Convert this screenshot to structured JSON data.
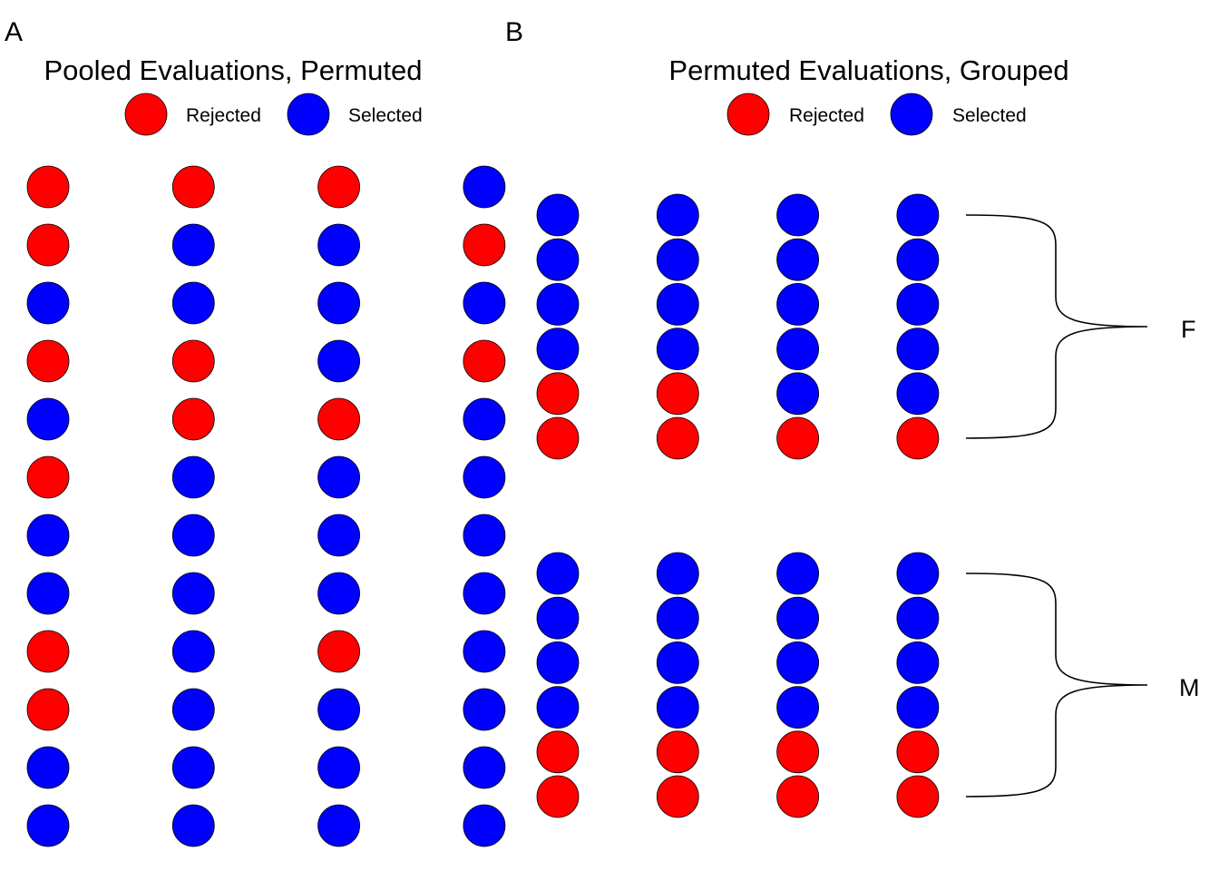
{
  "colors": {
    "rejected": "#ff0000",
    "selected": "#0000ff"
  },
  "panels": {
    "a": {
      "letter": "A",
      "title": "Pooled Evaluations, Permuted",
      "legend": {
        "rejected": "Rejected",
        "selected": "Selected"
      },
      "columns": [
        [
          "rejected",
          "rejected",
          "selected",
          "rejected",
          "selected",
          "rejected",
          "selected",
          "selected",
          "rejected",
          "rejected",
          "selected",
          "selected"
        ],
        [
          "rejected",
          "selected",
          "selected",
          "rejected",
          "rejected",
          "selected",
          "selected",
          "selected",
          "selected",
          "selected",
          "selected",
          "selected"
        ],
        [
          "rejected",
          "selected",
          "selected",
          "selected",
          "rejected",
          "selected",
          "selected",
          "selected",
          "rejected",
          "selected",
          "selected",
          "selected"
        ],
        [
          "selected",
          "rejected",
          "selected",
          "rejected",
          "selected",
          "selected",
          "selected",
          "selected",
          "selected",
          "selected",
          "selected",
          "selected"
        ]
      ]
    },
    "b": {
      "letter": "B",
      "title": "Permuted Evaluations, Grouped",
      "legend": {
        "rejected": "Rejected",
        "selected": "Selected"
      },
      "groups": [
        {
          "label": "F",
          "columns": [
            [
              "selected",
              "selected",
              "selected",
              "selected",
              "rejected",
              "rejected"
            ],
            [
              "selected",
              "selected",
              "selected",
              "selected",
              "rejected",
              "rejected"
            ],
            [
              "selected",
              "selected",
              "selected",
              "selected",
              "selected",
              "rejected"
            ],
            [
              "selected",
              "selected",
              "selected",
              "selected",
              "selected",
              "rejected"
            ]
          ]
        },
        {
          "label": "M",
          "columns": [
            [
              "selected",
              "selected",
              "selected",
              "selected",
              "rejected",
              "rejected"
            ],
            [
              "selected",
              "selected",
              "selected",
              "selected",
              "rejected",
              "rejected"
            ],
            [
              "selected",
              "selected",
              "selected",
              "selected",
              "rejected",
              "rejected"
            ],
            [
              "selected",
              "selected",
              "selected",
              "selected",
              "rejected",
              "rejected"
            ]
          ]
        }
      ]
    }
  }
}
